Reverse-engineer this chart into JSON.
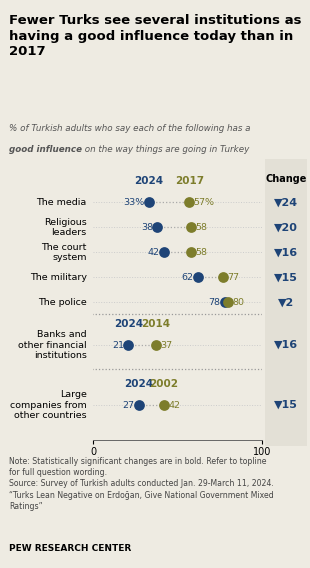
{
  "title": "Fewer Turks see several institutions as\nhaving a good influence today than in\n2017",
  "subtitle_italic": "% of Turkish adults who say each of the following has a",
  "subtitle_bold_italic": "good influence",
  "subtitle_rest": " on the way things are going in Turkey",
  "bg_color": "#eeebe2",
  "change_bg_color": "#e3e0d6",
  "blue_color": "#1e4477",
  "olive_color": "#7d7d2b",
  "categories": [
    "The media",
    "Religious\nleaders",
    "The court\nsystem",
    "The military",
    "The police"
  ],
  "values_2024": [
    33,
    38,
    42,
    62,
    78
  ],
  "values_old": [
    57,
    58,
    58,
    77,
    80
  ],
  "changes": [
    24,
    20,
    16,
    15,
    2
  ],
  "pct_signs": [
    true,
    false,
    false,
    false,
    false
  ],
  "year_label_main": "2017",
  "cat2_label": "Banks and\nother financial\ninstitutions",
  "cat2_2024": 21,
  "cat2_old": 37,
  "cat2_change": 16,
  "cat2_year": "2014",
  "cat3_label": "Large\ncompanies from\nother countries",
  "cat3_2024": 27,
  "cat3_old": 42,
  "cat3_change": 15,
  "cat3_year": "2002",
  "note_text": "Note: Statistically significant changes are in bold. Refer to topline\nfor full question wording.\nSource: Survey of Turkish adults conducted Jan. 29-March 11, 2024.\n“Turks Lean Negative on Erdoğan, Give National Government Mixed\nRatings”",
  "source_bold": "PEW RESEARCH CENTER"
}
